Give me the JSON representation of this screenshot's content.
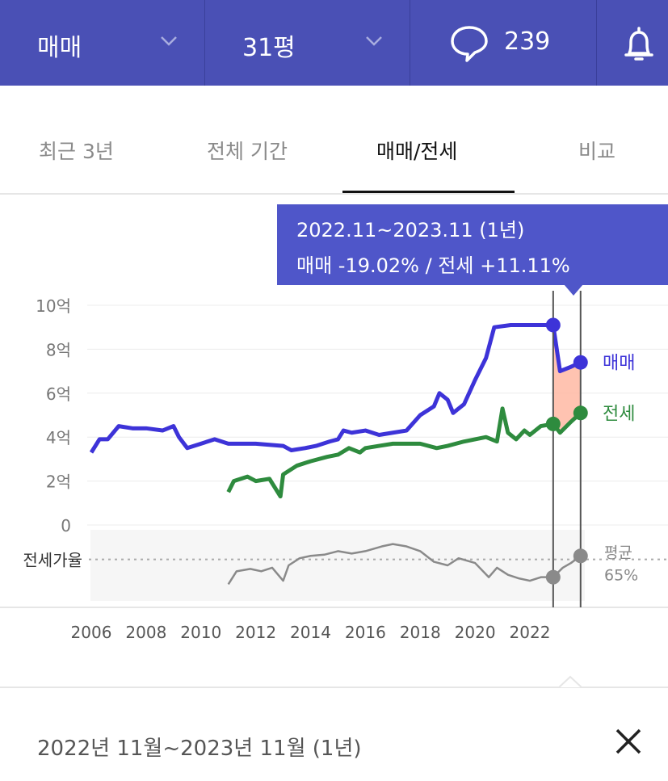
{
  "topbar": {
    "deal_type": "매매",
    "size": "31평",
    "comment_count": "239",
    "bg_color": "#4a50b5"
  },
  "tabs": [
    {
      "label": "최근 3년",
      "active": false
    },
    {
      "label": "전체 기간",
      "active": false
    },
    {
      "label": "매매/전세",
      "active": true
    },
    {
      "label": "비교",
      "active": false
    }
  ],
  "tooltip": {
    "period": "2022.11~2023.11 (1년)",
    "change": "매매 -19.02%  /  전세 +11.11%"
  },
  "chart_data": {
    "type": "line",
    "x_tick_labels": [
      "2006",
      "2008",
      "2010",
      "2012",
      "2014",
      "2016",
      "2018",
      "2020",
      "2022"
    ],
    "y_tick_labels": [
      "10억",
      "8억",
      "6억",
      "4억",
      "2억",
      "0"
    ],
    "ylim": [
      0,
      10
    ],
    "xlim": [
      2006,
      2024
    ],
    "ratio_label": "전세가율",
    "avg_label": "평균",
    "avg_value": "65%",
    "highlight": {
      "start": 2022.85,
      "end": 2023.85
    },
    "series": [
      {
        "name": "매매",
        "color": "#3d33d8",
        "points": [
          [
            2006.0,
            3.3
          ],
          [
            2006.3,
            3.9
          ],
          [
            2006.6,
            3.9
          ],
          [
            2007.0,
            4.5
          ],
          [
            2007.5,
            4.4
          ],
          [
            2008.0,
            4.4
          ],
          [
            2008.6,
            4.3
          ],
          [
            2009.0,
            4.5
          ],
          [
            2009.2,
            4.0
          ],
          [
            2009.5,
            3.5
          ],
          [
            2010.0,
            3.7
          ],
          [
            2010.5,
            3.9
          ],
          [
            2011.0,
            3.7
          ],
          [
            2012.0,
            3.7
          ],
          [
            2013.0,
            3.6
          ],
          [
            2013.3,
            3.4
          ],
          [
            2013.8,
            3.5
          ],
          [
            2014.2,
            3.6
          ],
          [
            2014.7,
            3.8
          ],
          [
            2015.0,
            3.9
          ],
          [
            2015.2,
            4.3
          ],
          [
            2015.5,
            4.2
          ],
          [
            2016.0,
            4.3
          ],
          [
            2016.5,
            4.1
          ],
          [
            2017.0,
            4.2
          ],
          [
            2017.5,
            4.3
          ],
          [
            2018.0,
            5.0
          ],
          [
            2018.5,
            5.4
          ],
          [
            2018.7,
            6.0
          ],
          [
            2019.0,
            5.7
          ],
          [
            2019.2,
            5.1
          ],
          [
            2019.6,
            5.5
          ],
          [
            2020.0,
            6.6
          ],
          [
            2020.4,
            7.6
          ],
          [
            2020.7,
            9.0
          ],
          [
            2021.3,
            9.1
          ],
          [
            2022.0,
            9.1
          ],
          [
            2022.85,
            9.1
          ],
          [
            2023.1,
            7.0
          ],
          [
            2023.5,
            7.2
          ],
          [
            2023.85,
            7.4
          ]
        ]
      },
      {
        "name": "전세",
        "color": "#2e8b3e",
        "points": [
          [
            2011.0,
            1.5
          ],
          [
            2011.2,
            2.0
          ],
          [
            2011.7,
            2.2
          ],
          [
            2012.0,
            2.0
          ],
          [
            2012.5,
            2.1
          ],
          [
            2012.9,
            1.3
          ],
          [
            2013.0,
            2.3
          ],
          [
            2013.5,
            2.7
          ],
          [
            2014.0,
            2.9
          ],
          [
            2014.6,
            3.1
          ],
          [
            2015.0,
            3.2
          ],
          [
            2015.4,
            3.5
          ],
          [
            2015.8,
            3.3
          ],
          [
            2016.0,
            3.5
          ],
          [
            2016.5,
            3.6
          ],
          [
            2017.0,
            3.7
          ],
          [
            2017.5,
            3.7
          ],
          [
            2018.0,
            3.7
          ],
          [
            2018.6,
            3.5
          ],
          [
            2019.0,
            3.6
          ],
          [
            2019.6,
            3.8
          ],
          [
            2020.0,
            3.9
          ],
          [
            2020.4,
            4.0
          ],
          [
            2020.8,
            3.8
          ],
          [
            2021.0,
            5.3
          ],
          [
            2021.2,
            4.2
          ],
          [
            2021.5,
            3.9
          ],
          [
            2021.8,
            4.3
          ],
          [
            2022.0,
            4.1
          ],
          [
            2022.4,
            4.5
          ],
          [
            2022.85,
            4.6
          ],
          [
            2023.1,
            4.2
          ],
          [
            2023.5,
            4.7
          ],
          [
            2023.85,
            5.1
          ]
        ]
      },
      {
        "name": "전세가율",
        "color": "#8a8a8a",
        "points": [
          [
            2011.0,
            44
          ],
          [
            2011.3,
            55
          ],
          [
            2011.8,
            57
          ],
          [
            2012.2,
            55
          ],
          [
            2012.6,
            58
          ],
          [
            2013.0,
            47
          ],
          [
            2013.2,
            60
          ],
          [
            2013.6,
            66
          ],
          [
            2014.0,
            68
          ],
          [
            2014.5,
            69
          ],
          [
            2015.0,
            72
          ],
          [
            2015.5,
            70
          ],
          [
            2016.0,
            72
          ],
          [
            2016.6,
            76
          ],
          [
            2017.0,
            78
          ],
          [
            2017.5,
            76
          ],
          [
            2018.0,
            72
          ],
          [
            2018.5,
            63
          ],
          [
            2019.0,
            60
          ],
          [
            2019.4,
            66
          ],
          [
            2020.0,
            62
          ],
          [
            2020.5,
            50
          ],
          [
            2020.8,
            58
          ],
          [
            2021.2,
            52
          ],
          [
            2021.6,
            49
          ],
          [
            2022.0,
            47
          ],
          [
            2022.4,
            50
          ],
          [
            2022.85,
            50
          ],
          [
            2023.2,
            58
          ],
          [
            2023.5,
            62
          ],
          [
            2023.85,
            68
          ]
        ]
      }
    ]
  },
  "footer": {
    "period_text": "2022년 11월~2023년 11월 (1년)"
  }
}
